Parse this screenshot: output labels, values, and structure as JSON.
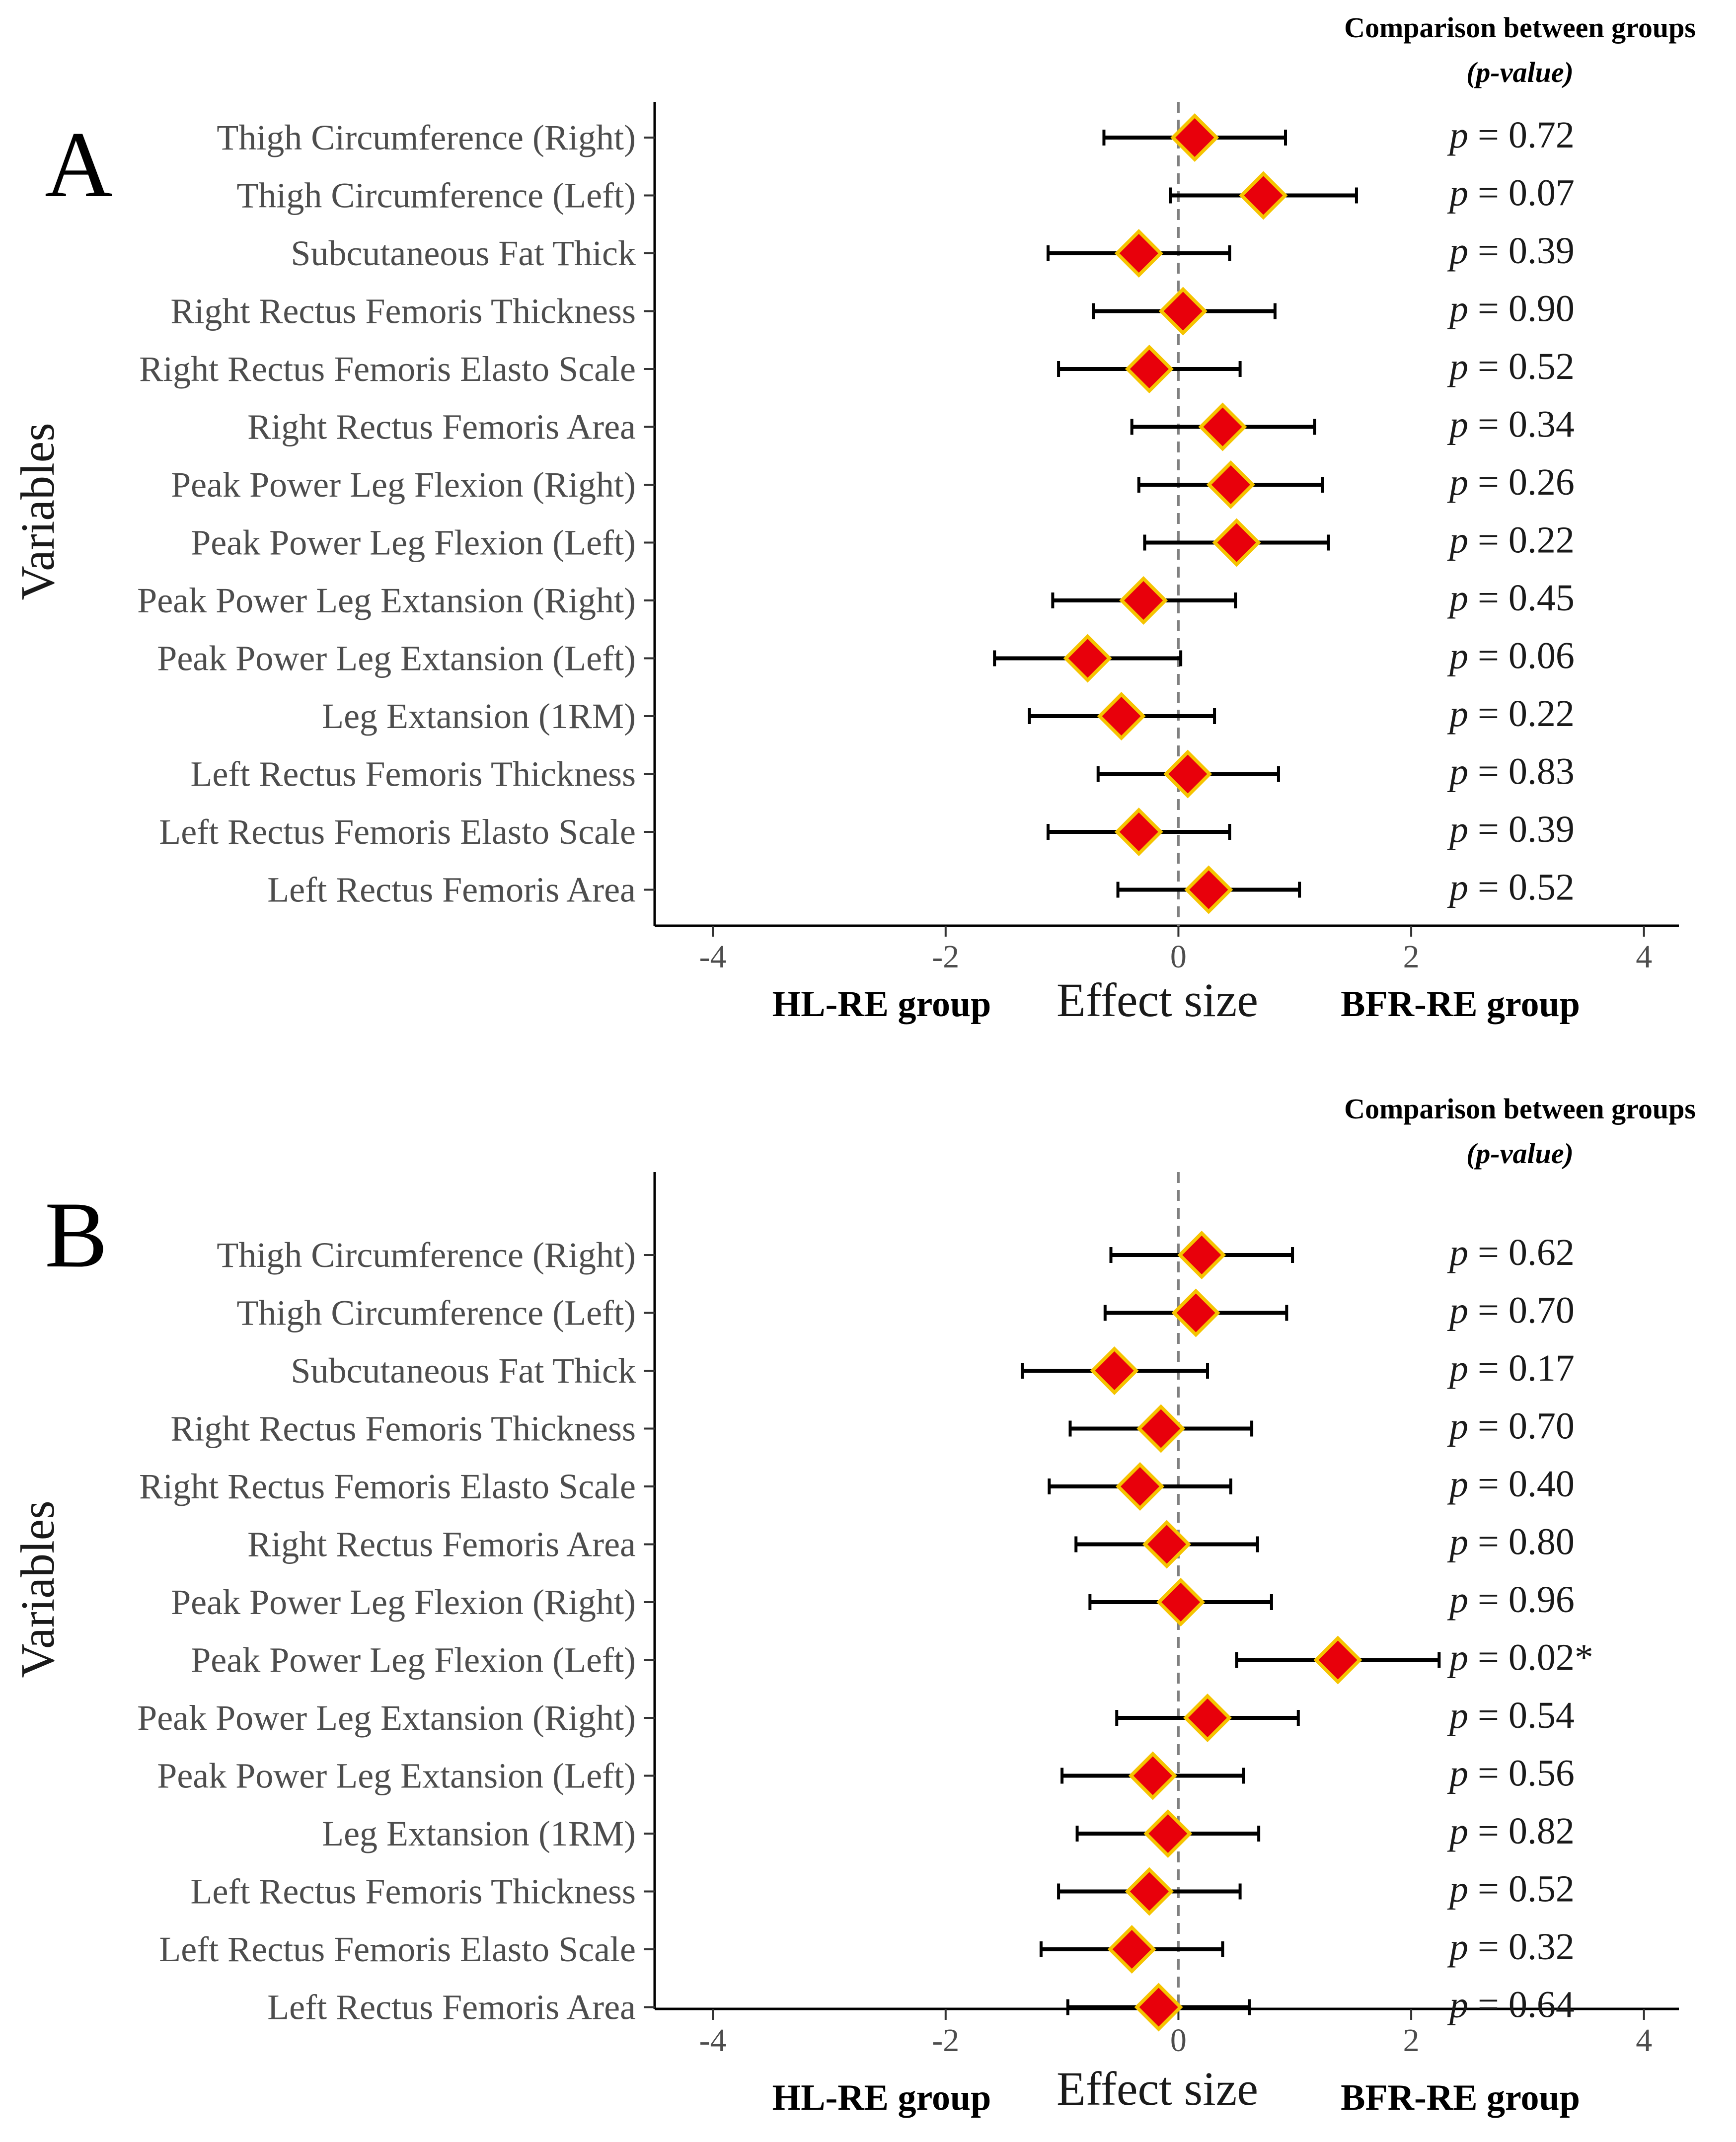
{
  "chart_data": [
    {
      "type": "forest",
      "panel": "A",
      "xlabel": "Effect size",
      "ylabel": "Variables",
      "left_group": "HL-RE group",
      "right_group": "BFR-RE group",
      "xlim": [
        -4.5,
        4.3
      ],
      "xticks": [
        -4,
        -2,
        0,
        2,
        4
      ],
      "reference_line": 0,
      "pvalue_header": [
        "Comparison between groups",
        "(p-value)"
      ],
      "marker_color": "#e8000b",
      "marker_border": "#f5c400",
      "rows": [
        {
          "label": "Thigh Circumference (Right)",
          "estimate": 0.14,
          "lower": -0.64,
          "upper": 0.92,
          "p": "0.72"
        },
        {
          "label": "Thigh Circumference (Left)",
          "estimate": 0.73,
          "lower": -0.07,
          "upper": 1.53,
          "p": "0.07"
        },
        {
          "label": "Subcutaneous Fat Thick",
          "estimate": -0.34,
          "lower": -1.12,
          "upper": 0.44,
          "p": "0.39"
        },
        {
          "label": "Right Rectus Femoris Thickness",
          "estimate": 0.04,
          "lower": -0.73,
          "upper": 0.83,
          "p": "0.90"
        },
        {
          "label": "Right Rectus Femoris Elasto Scale",
          "estimate": -0.25,
          "lower": -1.03,
          "upper": 0.53,
          "p": "0.52"
        },
        {
          "label": "Right Rectus Femoris Area",
          "estimate": 0.38,
          "lower": -0.4,
          "upper": 1.17,
          "p": "0.34"
        },
        {
          "label": "Peak Power Leg Flexion (Right)",
          "estimate": 0.45,
          "lower": -0.34,
          "upper": 1.24,
          "p": "0.26"
        },
        {
          "label": "Peak Power Leg Flexion (Left)",
          "estimate": 0.5,
          "lower": -0.29,
          "upper": 1.29,
          "p": "0.22"
        },
        {
          "label": "Peak Power Leg Extansion (Right)",
          "estimate": -0.3,
          "lower": -1.08,
          "upper": 0.49,
          "p": "0.45"
        },
        {
          "label": "Peak Power Leg Extansion (Left)",
          "estimate": -0.78,
          "lower": -1.58,
          "upper": 0.02,
          "p": "0.06"
        },
        {
          "label": "Leg Extansion (1RM)",
          "estimate": -0.49,
          "lower": -1.28,
          "upper": 0.31,
          "p": "0.22"
        },
        {
          "label": "Left Rectus Femoris Thickness",
          "estimate": 0.08,
          "lower": -0.69,
          "upper": 0.86,
          "p": "0.83"
        },
        {
          "label": "Left Rectus Femoris Elasto Scale",
          "estimate": -0.34,
          "lower": -1.12,
          "upper": 0.44,
          "p": "0.39"
        },
        {
          "label": "Left Rectus Femoris Area",
          "estimate": 0.26,
          "lower": -0.52,
          "upper": 1.04,
          "p": "0.52"
        }
      ]
    },
    {
      "type": "forest",
      "panel": "B",
      "xlabel": "Effect size",
      "ylabel": "Variables",
      "left_group": "HL-RE group",
      "right_group": "BFR-RE group",
      "xlim": [
        -4.5,
        4.3
      ],
      "xticks": [
        -4,
        -2,
        0,
        2,
        4
      ],
      "reference_line": 0,
      "pvalue_header": [
        "Comparison between groups",
        "(p-value)"
      ],
      "marker_color": "#e8000b",
      "marker_border": "#f5c400",
      "rows": [
        {
          "label": "Thigh Circumference (Right)",
          "estimate": 0.2,
          "lower": -0.58,
          "upper": 0.98,
          "p": "0.62"
        },
        {
          "label": "Thigh Circumference (Left)",
          "estimate": 0.15,
          "lower": -0.63,
          "upper": 0.93,
          "p": "0.70"
        },
        {
          "label": "Subcutaneous Fat Thick",
          "estimate": -0.55,
          "lower": -1.34,
          "upper": 0.25,
          "p": "0.17"
        },
        {
          "label": "Right Rectus Femoris Thickness",
          "estimate": -0.15,
          "lower": -0.93,
          "upper": 0.63,
          "p": "0.70"
        },
        {
          "label": "Right Rectus Femoris Elasto Scale",
          "estimate": -0.33,
          "lower": -1.11,
          "upper": 0.45,
          "p": "0.40"
        },
        {
          "label": "Right Rectus Femoris Area",
          "estimate": -0.1,
          "lower": -0.88,
          "upper": 0.68,
          "p": "0.80"
        },
        {
          "label": "Peak Power Leg Flexion (Right)",
          "estimate": 0.02,
          "lower": -0.76,
          "upper": 0.8,
          "p": "0.96"
        },
        {
          "label": "Peak Power Leg Flexion (Left)",
          "estimate": 1.37,
          "lower": 0.5,
          "upper": 2.24,
          "p": "0.02*"
        },
        {
          "label": "Peak Power Leg Extansion (Right)",
          "estimate": 0.25,
          "lower": -0.53,
          "upper": 1.03,
          "p": "0.54"
        },
        {
          "label": "Peak Power Leg Extansion (Left)",
          "estimate": -0.22,
          "lower": -1.0,
          "upper": 0.56,
          "p": "0.56"
        },
        {
          "label": "Leg Extansion (1RM)",
          "estimate": -0.09,
          "lower": -0.87,
          "upper": 0.69,
          "p": "0.82"
        },
        {
          "label": "Left Rectus Femoris Thickness",
          "estimate": -0.25,
          "lower": -1.03,
          "upper": 0.53,
          "p": "0.52"
        },
        {
          "label": "Left Rectus Femoris Elasto Scale",
          "estimate": -0.4,
          "lower": -1.18,
          "upper": 0.38,
          "p": "0.32"
        },
        {
          "label": "Left Rectus Femoris Area",
          "estimate": -0.17,
          "lower": -0.95,
          "upper": 0.61,
          "p": "0.64"
        }
      ]
    }
  ]
}
